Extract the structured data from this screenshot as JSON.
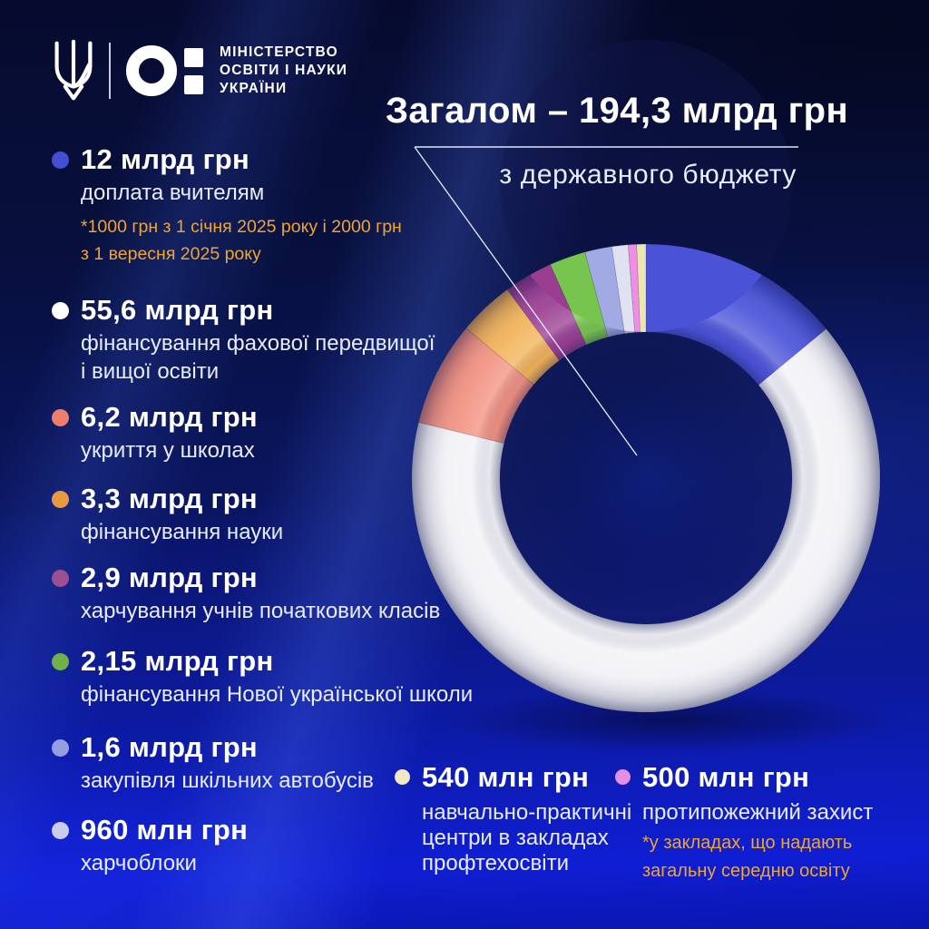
{
  "brand": {
    "ministry_name_lines": [
      "МІНІСТЕРСТВО",
      "ОСВІТИ І НАУКИ",
      "УКРАЇНИ"
    ]
  },
  "header": {
    "title": "Загалом – 194,3 млрд грн",
    "subtitle": "з державного бюджету"
  },
  "legend_items": [
    {
      "amount": "12 млрд грн",
      "description": "доплата вчителям",
      "note": "*1000 грн з 1 січня 2025 року і 2000 грн\nз 1 вересня 2025 року",
      "bullet_color": "#4150d2"
    },
    {
      "amount": "55,6 млрд грн",
      "description": "фінансування фахової передвищої\nі вищої освіти",
      "bullet_color": "#ffffff"
    },
    {
      "amount": "6,2 млрд грн",
      "description": "укриття у школах",
      "bullet_color": "#ee7e6b"
    },
    {
      "amount": "3,3 млрд грн",
      "description": "фінансування науки",
      "bullet_color": "#e9993f"
    },
    {
      "amount": "2,9 млрд грн",
      "description": "харчування учнів початкових класів",
      "bullet_color": "#9c4f93"
    },
    {
      "amount": "2,15 млрд грн",
      "description": "фінансування Нової української школи",
      "bullet_color": "#71b14b"
    },
    {
      "amount": "1,6 млрд грн",
      "description": "закупівля шкільних автобусів",
      "bullet_color": "#959ede"
    },
    {
      "amount": "960 млн грн",
      "description": "харчоблоки",
      "bullet_color": "#c9cdec"
    },
    {
      "amount": "540 млн грн",
      "description": "навчально-практичні\nцентри в закладах\nпрофтехосвіти",
      "bullet_color": "#efe9c5"
    },
    {
      "amount": "500 млн грн",
      "description": "протипожежний захист",
      "note": "*у закладах, що надають\nзагальну середню освіту",
      "bullet_color": "#e28fe4"
    }
  ],
  "chart_data": {
    "type": "pie",
    "variant": "3d-donut",
    "title": "Загалом – 194,3 млрд грн",
    "subtitle": "з державного бюджету",
    "units": "млрд грн",
    "total_label_value": 194.3,
    "legend_position": "left",
    "grid": false,
    "segments_clockwise_from_top": [
      {
        "label": "доплата вчителям",
        "value": 12,
        "color": "#4a53d8"
      },
      {
        "label": "фінансування фахової передвищої і вищої освіти",
        "value": 55.6,
        "color": "#f2f2f6"
      },
      {
        "label": "укриття у школах",
        "value": 6.2,
        "color": "#f2917f"
      },
      {
        "label": "фінансування науки",
        "value": 3.3,
        "color": "#f2b257"
      },
      {
        "label": "харчування учнів початкових класів",
        "value": 2.9,
        "color": "#9a3e92"
      },
      {
        "label": "фінансування Нової української школи",
        "value": 2.15,
        "color": "#77c44e"
      },
      {
        "label": "закупівля шкільних автобусів",
        "value": 1.6,
        "color": "#a2aae3"
      },
      {
        "label": "харчоблоки",
        "value": 0.96,
        "color": "#e0e2f2"
      },
      {
        "label": "протипожежний захист",
        "value": 0.5,
        "color": "#ef8fe3"
      },
      {
        "label": "навчально-практичні центри в закладах профтехосвіти",
        "value": 0.54,
        "color": "#eae6ad"
      }
    ]
  }
}
